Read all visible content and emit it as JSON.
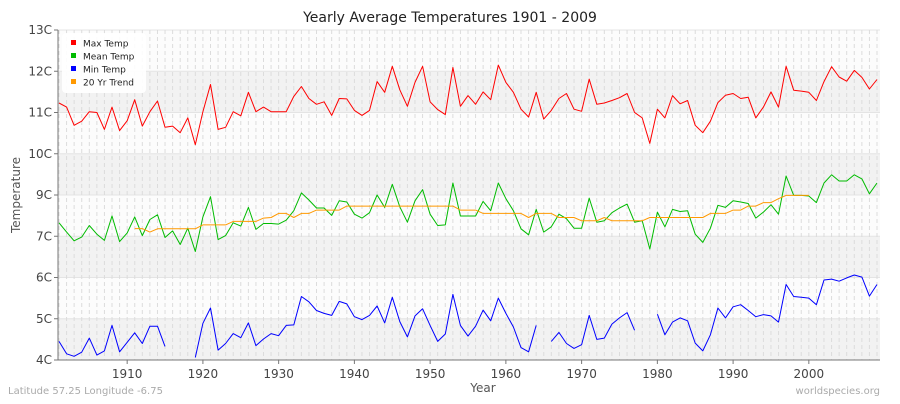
{
  "chart_data": {
    "type": "line",
    "title": "Yearly Average Temperatures 1901 - 2009",
    "xlabel": "Year",
    "ylabel": "Temperature",
    "xlim": [
      1901,
      2009
    ],
    "xticks": [
      "1910",
      "1920",
      "1930",
      "1940",
      "1950",
      "1960",
      "1970",
      "1980",
      "1990",
      "2000"
    ],
    "xtick_values": [
      1910,
      1920,
      1930,
      1940,
      1950,
      1960,
      1970,
      1980,
      1990,
      2000
    ],
    "yticks": [
      "13C",
      "12C",
      "11C",
      "10C",
      "9C",
      "7C",
      "6C",
      "5C",
      "4C"
    ],
    "ytick_values": [
      13,
      12,
      11,
      10,
      9,
      7,
      6,
      5,
      4
    ],
    "grid": true,
    "legend_position": "top-left",
    "x": [
      1901,
      1902,
      1903,
      1904,
      1905,
      1906,
      1907,
      1908,
      1909,
      1910,
      1911,
      1912,
      1913,
      1914,
      1915,
      1916,
      1917,
      1918,
      1919,
      1920,
      1921,
      1922,
      1923,
      1924,
      1925,
      1926,
      1927,
      1928,
      1929,
      1930,
      1931,
      1932,
      1933,
      1934,
      1935,
      1936,
      1937,
      1938,
      1939,
      1940,
      1941,
      1942,
      1943,
      1944,
      1945,
      1946,
      1947,
      1948,
      1949,
      1950,
      1951,
      1952,
      1953,
      1954,
      1955,
      1956,
      1957,
      1958,
      1959,
      1960,
      1961,
      1962,
      1963,
      1964,
      1965,
      1966,
      1967,
      1968,
      1969,
      1970,
      1971,
      1972,
      1973,
      1974,
      1975,
      1976,
      1977,
      1978,
      1979,
      1980,
      1981,
      1982,
      1983,
      1984,
      1985,
      1986,
      1987,
      1988,
      1989,
      1990,
      1991,
      1992,
      1993,
      1994,
      1995,
      1996,
      1997,
      1998,
      1999,
      2000,
      2001,
      2002,
      2003,
      2004,
      2005,
      2006,
      2007,
      2008,
      2009
    ],
    "series": [
      {
        "name": "Max Temp",
        "color": "#ff0000",
        "values": [
          11.23,
          11.13,
          10.69,
          10.79,
          11.02,
          11.0,
          10.59,
          11.13,
          10.56,
          10.8,
          11.31,
          10.67,
          11.02,
          11.28,
          10.64,
          10.67,
          10.51,
          10.87,
          10.22,
          11.02,
          11.68,
          10.59,
          10.64,
          11.02,
          10.92,
          11.49,
          11.02,
          11.13,
          11.02,
          11.02,
          11.02,
          11.39,
          11.63,
          11.34,
          11.2,
          11.26,
          10.93,
          11.34,
          11.33,
          11.05,
          10.93,
          11.05,
          11.75,
          11.49,
          12.12,
          11.55,
          11.15,
          11.73,
          12.12,
          11.26,
          11.07,
          10.95,
          12.09,
          11.15,
          11.41,
          11.2,
          11.5,
          11.31,
          12.15,
          11.73,
          11.49,
          11.08,
          10.89,
          11.49,
          10.84,
          11.05,
          11.34,
          11.46,
          11.08,
          11.03,
          11.81,
          11.2,
          11.23,
          11.29,
          11.36,
          11.46,
          11.0,
          10.87,
          10.25,
          11.08,
          10.87,
          11.41,
          11.21,
          11.29,
          10.69,
          10.51,
          10.79,
          11.24,
          11.42,
          11.46,
          11.34,
          11.37,
          10.87,
          11.13,
          11.5,
          11.13,
          12.12,
          11.54,
          11.52,
          11.49,
          11.29,
          11.75,
          12.11,
          11.86,
          11.76,
          12.02,
          11.85,
          11.57,
          11.8
        ]
      },
      {
        "name": "Mean Temp",
        "color": "#00bb00",
        "values": [
          7.65,
          7.2,
          6.89,
          6.98,
          7.52,
          7.1,
          6.9,
          7.98,
          6.87,
          7.16,
          7.94,
          7.03,
          7.81,
          8.04,
          6.97,
          7.26,
          6.8,
          7.39,
          6.63,
          7.94,
          8.92,
          6.92,
          7.03,
          7.65,
          7.49,
          8.4,
          7.33,
          7.62,
          7.62,
          7.59,
          7.78,
          8.24,
          9.05,
          8.76,
          8.37,
          8.37,
          8.01,
          8.72,
          8.66,
          8.07,
          7.88,
          8.14,
          9.0,
          8.4,
          9.26,
          8.43,
          7.68,
          8.72,
          9.13,
          8.07,
          7.52,
          7.55,
          9.29,
          7.98,
          7.98,
          7.98,
          8.69,
          8.24,
          9.29,
          8.82,
          8.24,
          7.36,
          7.07,
          8.3,
          7.2,
          7.46,
          8.07,
          7.85,
          7.39,
          7.39,
          8.85,
          7.68,
          7.75,
          8.14,
          8.37,
          8.56,
          7.68,
          7.75,
          6.69,
          8.17,
          7.46,
          8.3,
          8.2,
          8.24,
          7.1,
          6.85,
          7.39,
          8.5,
          8.4,
          8.72,
          8.66,
          8.59,
          7.88,
          8.17,
          8.53,
          8.07,
          9.46,
          8.98,
          8.98,
          8.95,
          8.63,
          9.29,
          9.49,
          9.34,
          9.34,
          9.49,
          9.39,
          9.03,
          9.29
        ]
      },
      {
        "name": "Min Temp",
        "color": "#0000ff",
        "values": [
          4.45,
          4.15,
          4.09,
          4.19,
          4.53,
          4.12,
          4.22,
          4.84,
          4.2,
          4.43,
          4.66,
          4.4,
          4.82,
          4.82,
          4.33,
          null,
          null,
          null,
          4.06,
          4.89,
          5.26,
          4.24,
          4.4,
          4.64,
          4.54,
          4.9,
          4.35,
          4.51,
          4.64,
          4.59,
          4.84,
          4.85,
          5.54,
          5.41,
          5.2,
          5.13,
          5.08,
          5.42,
          5.36,
          5.05,
          4.98,
          5.08,
          5.31,
          4.9,
          5.52,
          4.93,
          4.56,
          5.07,
          5.24,
          4.84,
          4.45,
          4.63,
          5.59,
          4.84,
          4.58,
          4.82,
          5.21,
          4.95,
          5.5,
          5.13,
          4.8,
          4.3,
          4.2,
          4.84,
          null,
          4.45,
          4.67,
          4.4,
          4.28,
          4.37,
          5.08,
          4.5,
          4.53,
          4.87,
          5.02,
          5.15,
          4.72,
          null,
          null,
          5.11,
          4.61,
          4.92,
          5.02,
          4.95,
          4.41,
          4.22,
          4.61,
          5.26,
          5.02,
          5.29,
          5.34,
          5.2,
          5.05,
          5.1,
          5.07,
          4.92,
          5.83,
          5.54,
          5.52,
          5.5,
          5.34,
          5.94,
          5.96,
          5.91,
          5.99,
          6.06,
          6.01,
          5.55,
          5.83
        ]
      },
      {
        "name": "20 Yr Trend",
        "color": "#ff9900",
        "values": [
          null,
          null,
          null,
          null,
          null,
          null,
          null,
          null,
          null,
          null,
          7.37,
          7.37,
          7.2,
          7.36,
          7.36,
          7.36,
          7.36,
          7.36,
          7.36,
          7.55,
          7.55,
          7.55,
          7.55,
          7.72,
          7.72,
          7.72,
          7.72,
          7.88,
          7.91,
          8.11,
          8.11,
          7.91,
          8.11,
          8.11,
          8.27,
          8.27,
          8.27,
          8.27,
          8.46,
          8.46,
          8.46,
          8.46,
          8.46,
          8.46,
          8.46,
          8.46,
          8.46,
          8.46,
          8.46,
          8.46,
          8.46,
          8.46,
          8.46,
          8.27,
          8.27,
          8.27,
          8.11,
          8.11,
          8.11,
          8.11,
          8.11,
          8.11,
          7.91,
          8.11,
          8.11,
          8.11,
          7.91,
          7.91,
          7.91,
          7.75,
          7.75,
          7.75,
          7.91,
          7.75,
          7.75,
          7.75,
          7.75,
          7.75,
          7.91,
          7.91,
          7.91,
          7.91,
          7.91,
          7.91,
          7.91,
          7.91,
          8.11,
          8.11,
          8.11,
          8.27,
          8.27,
          8.46,
          8.46,
          8.63,
          8.63,
          8.82,
          8.98,
          8.98,
          8.98,
          8.98,
          null,
          null,
          null,
          null,
          null,
          null,
          null,
          null,
          null
        ]
      }
    ]
  },
  "footer": {
    "location": "Latitude 57.25 Longitude -6.75",
    "source": "worldspecies.org"
  }
}
